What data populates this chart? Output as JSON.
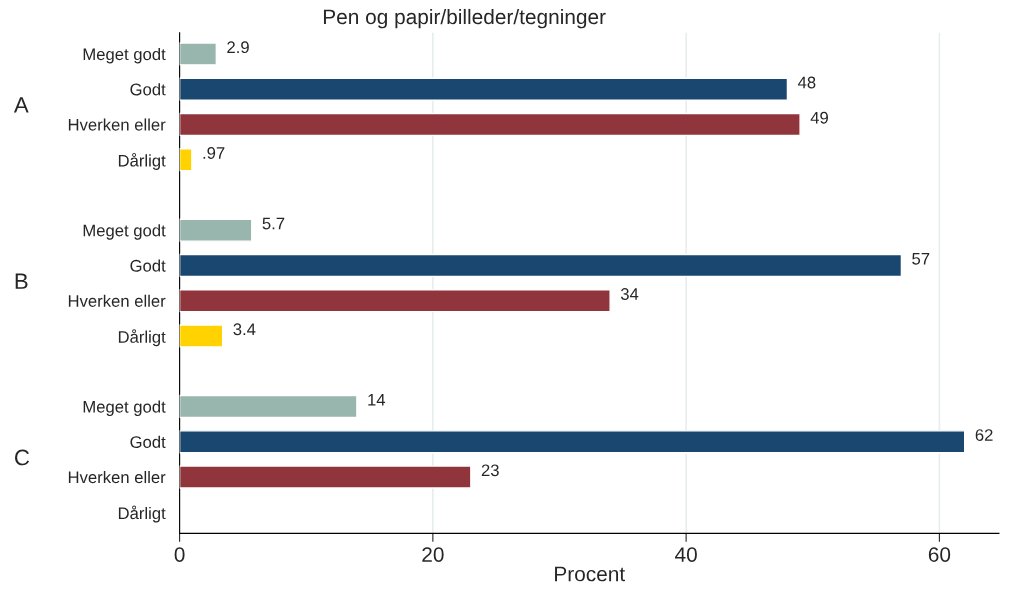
{
  "chart_data": {
    "type": "bar",
    "orientation": "horizontal",
    "title": "Pen og papir/billeder/tegninger",
    "xlabel": "Procent",
    "categories": [
      "Meget godt",
      "Godt",
      "Hverken eller",
      "Dårligt",
      "Meget godt",
      "Godt",
      "Hverken eller",
      "Dårligt",
      "Meget godt",
      "Godt",
      "Hverken eller",
      "Dårligt"
    ],
    "values": [
      2.9,
      48,
      49,
      0.97,
      5.7,
      57,
      34,
      3.4,
      14,
      62,
      23,
      null
    ],
    "value_labels": [
      "2.9",
      "48",
      "49",
      ".97",
      "5.7",
      "57",
      "34",
      "3.4",
      "14",
      "62",
      "23",
      null
    ],
    "colors": [
      "#98b5ae",
      "#1a476f",
      "#90353b",
      "#ffd200",
      "#98b5ae",
      "#1a476f",
      "#90353b",
      "#ffd200",
      "#98b5ae",
      "#1a476f",
      "#90353b",
      "#ffd200"
    ],
    "annotations": [
      "A",
      "B",
      "C"
    ],
    "xlim": [
      0,
      64.7
    ],
    "xticks": [
      0,
      20,
      40,
      60
    ],
    "grid": "x"
  }
}
